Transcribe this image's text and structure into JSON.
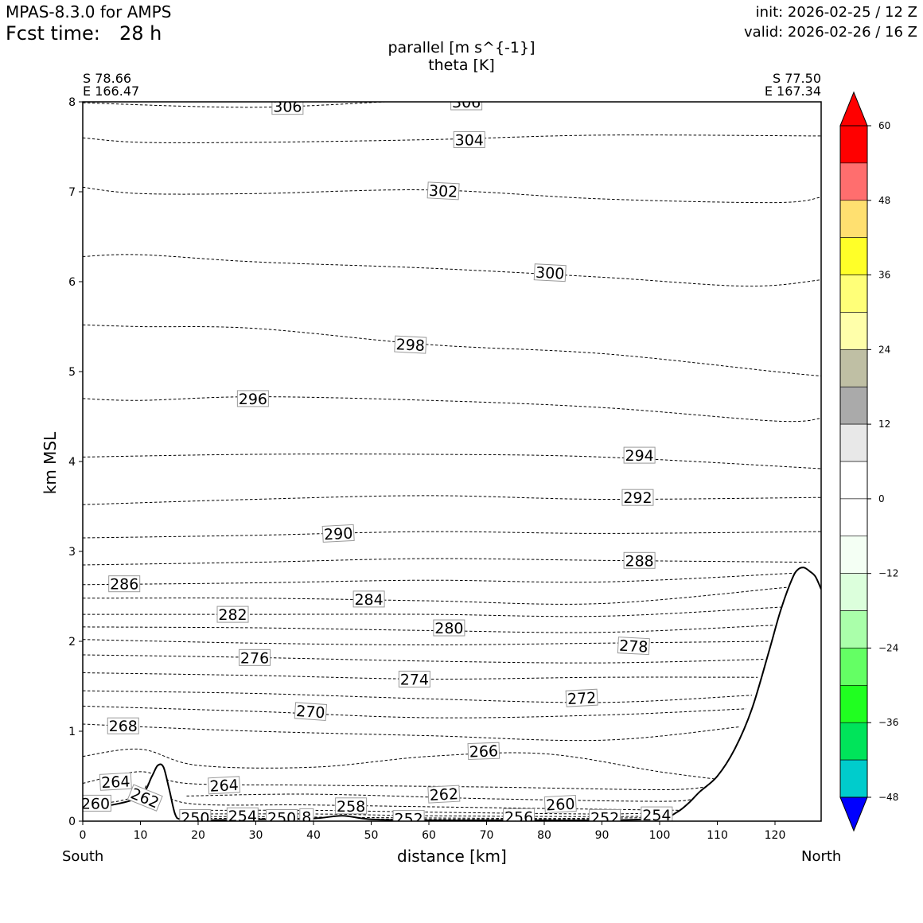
{
  "header": {
    "model": "MPAS-8.3.0 for AMPS",
    "fcst_label": "Fcst time:",
    "fcst_value": "28 h",
    "init": "init: 2026-02-25 / 12 Z",
    "valid": "valid: 2026-02-26 / 16 Z"
  },
  "endpoints": {
    "left_lat": "S 78.66",
    "left_lon": "E 166.47",
    "right_lat": "S 77.50",
    "right_lon": "E 167.34",
    "left_dir": "South",
    "right_dir": "North"
  },
  "chart_data": {
    "type": "line",
    "title": "parallel [m s^{-1}]",
    "subtitle": "theta [K]",
    "xlabel": "distance [km]",
    "ylabel": "km MSL",
    "xlim": [
      0,
      128
    ],
    "ylim": [
      0,
      8
    ],
    "xticks": [
      "0",
      "10",
      "20",
      "30",
      "40",
      "50",
      "60",
      "70",
      "80",
      "90",
      "100",
      "110",
      "120"
    ],
    "yticks": [
      "0",
      "1",
      "2",
      "3",
      "4",
      "5",
      "6",
      "7",
      "8"
    ],
    "grid": false,
    "terrain": {
      "name": "terrain",
      "x": [
        0,
        5,
        10,
        12,
        13,
        14,
        15,
        16,
        17,
        20,
        30,
        40,
        45,
        50,
        60,
        70,
        80,
        90,
        100,
        103,
        105,
        107,
        110,
        113,
        116,
        119,
        121,
        123,
        124,
        125,
        126,
        127,
        128
      ],
      "y": [
        0.16,
        0.18,
        0.28,
        0.5,
        0.62,
        0.6,
        0.35,
        0.08,
        0.02,
        0.01,
        0.02,
        0.03,
        0.06,
        0.02,
        0.01,
        0.01,
        0.01,
        0.01,
        0.03,
        0.1,
        0.2,
        0.33,
        0.5,
        0.8,
        1.25,
        1.9,
        2.35,
        2.7,
        2.8,
        2.82,
        2.78,
        2.72,
        2.58
      ]
    },
    "isentropes": [
      {
        "name": "306",
        "x": [
          0,
          30,
          60,
          90,
          128
        ],
        "y": [
          7.99,
          7.94,
          8.02,
          8.05,
          8.06
        ]
      },
      {
        "name": "304",
        "x": [
          0,
          10,
          30,
          60,
          90,
          128
        ],
        "y": [
          7.6,
          7.55,
          7.55,
          7.58,
          7.63,
          7.62
        ]
      },
      {
        "name": "302",
        "x": [
          0,
          10,
          30,
          60,
          90,
          120,
          128
        ],
        "y": [
          7.05,
          6.98,
          6.98,
          7.02,
          6.92,
          6.88,
          6.94
        ]
      },
      {
        "name": "300",
        "x": [
          0,
          10,
          30,
          60,
          90,
          115,
          128
        ],
        "y": [
          6.28,
          6.3,
          6.22,
          6.15,
          6.05,
          5.95,
          6.02
        ]
      },
      {
        "name": "298",
        "x": [
          0,
          10,
          30,
          60,
          90,
          120,
          128
        ],
        "y": [
          5.52,
          5.5,
          5.48,
          5.3,
          5.2,
          5.0,
          4.95
        ]
      },
      {
        "name": "296",
        "x": [
          0,
          10,
          30,
          60,
          90,
          120,
          128
        ],
        "y": [
          4.7,
          4.68,
          4.72,
          4.68,
          4.6,
          4.45,
          4.48
        ]
      },
      {
        "name": "294",
        "x": [
          0,
          30,
          60,
          90,
          128
        ],
        "y": [
          4.05,
          4.08,
          4.08,
          4.05,
          3.92
        ]
      },
      {
        "name": "292",
        "x": [
          0,
          30,
          60,
          90,
          128
        ],
        "y": [
          3.52,
          3.58,
          3.62,
          3.58,
          3.6
        ]
      },
      {
        "name": "290",
        "x": [
          0,
          30,
          60,
          90,
          128
        ],
        "y": [
          3.15,
          3.18,
          3.22,
          3.2,
          3.22
        ]
      },
      {
        "name": "288",
        "x": [
          0,
          30,
          60,
          90,
          126
        ],
        "y": [
          2.85,
          2.88,
          2.92,
          2.9,
          2.88
        ]
      },
      {
        "name": "286",
        "x": [
          0,
          30,
          60,
          90,
          124
        ],
        "y": [
          2.63,
          2.65,
          2.68,
          2.66,
          2.76
        ]
      },
      {
        "name": "284",
        "x": [
          0,
          30,
          60,
          90,
          122
        ],
        "y": [
          2.48,
          2.48,
          2.45,
          2.42,
          2.6
        ]
      },
      {
        "name": "282",
        "x": [
          0,
          30,
          60,
          90,
          121
        ],
        "y": [
          2.3,
          2.3,
          2.3,
          2.28,
          2.38
        ]
      },
      {
        "name": "280",
        "x": [
          0,
          30,
          60,
          90,
          120
        ],
        "y": [
          2.16,
          2.15,
          2.12,
          2.1,
          2.18
        ]
      },
      {
        "name": "278",
        "x": [
          0,
          30,
          60,
          90,
          119
        ],
        "y": [
          2.02,
          1.98,
          1.96,
          1.98,
          2.0
        ]
      },
      {
        "name": "276",
        "x": [
          0,
          30,
          60,
          90,
          118
        ],
        "y": [
          1.85,
          1.82,
          1.78,
          1.76,
          1.8
        ]
      },
      {
        "name": "274",
        "x": [
          0,
          30,
          60,
          90,
          117
        ],
        "y": [
          1.65,
          1.62,
          1.58,
          1.6,
          1.6
        ]
      },
      {
        "name": "272",
        "x": [
          0,
          30,
          60,
          90,
          116
        ],
        "y": [
          1.45,
          1.42,
          1.36,
          1.32,
          1.4
        ]
      },
      {
        "name": "270",
        "x": [
          0,
          30,
          60,
          90,
          115
        ],
        "y": [
          1.28,
          1.22,
          1.15,
          1.18,
          1.25
        ]
      },
      {
        "name": "268",
        "x": [
          0,
          10,
          30,
          60,
          90,
          114
        ],
        "y": [
          1.08,
          1.05,
          1.0,
          0.95,
          0.9,
          1.05
        ]
      },
      {
        "name": "266",
        "x": [
          0,
          10,
          20,
          40,
          60,
          80,
          100,
          112
        ],
        "y": [
          0.72,
          0.8,
          0.62,
          0.6,
          0.72,
          0.75,
          0.55,
          0.45
        ]
      },
      {
        "name": "264",
        "x": [
          0,
          10,
          18,
          40,
          70,
          100,
          108
        ],
        "y": [
          0.42,
          0.55,
          0.42,
          0.4,
          0.38,
          0.35,
          0.38
        ]
      },
      {
        "name": "262",
        "x": [
          18,
          40,
          70,
          100,
          106
        ],
        "y": [
          0.28,
          0.3,
          0.25,
          0.22,
          0.25
        ]
      },
      {
        "name": "260",
        "x": [
          0,
          6,
          10,
          12,
          18,
          40,
          70,
          104
        ],
        "y": [
          0.18,
          0.22,
          0.3,
          0.42,
          0.2,
          0.18,
          0.15,
          0.12
        ]
      },
      {
        "name": "258",
        "x": [
          18,
          40,
          60,
          90,
          102
        ],
        "y": [
          0.12,
          0.12,
          0.1,
          0.08,
          0.1
        ]
      },
      {
        "name": "256",
        "x": [
          18,
          40,
          60,
          90,
          101
        ],
        "y": [
          0.08,
          0.08,
          0.06,
          0.05,
          0.06
        ]
      },
      {
        "name": "254",
        "x": [
          17,
          30,
          50,
          80,
          100
        ],
        "y": [
          0.05,
          0.05,
          0.04,
          0.03,
          0.04
        ]
      },
      {
        "name": "252",
        "x": [
          17,
          40,
          60,
          90
        ],
        "y": [
          0.03,
          0.03,
          0.02,
          0.02
        ]
      },
      {
        "name": "250",
        "x": [
          17,
          30,
          40
        ],
        "y": [
          0.015,
          0.02,
          0.025
        ]
      }
    ],
    "contour_labels": [
      {
        "text": "306",
        "x": 35.5,
        "y": 7.95,
        "rot": 0
      },
      {
        "text": "306",
        "x": 66.5,
        "y": 8.0,
        "rot": 0
      },
      {
        "text": "304",
        "x": 67,
        "y": 7.58,
        "rot": 0
      },
      {
        "text": "302",
        "x": 62.5,
        "y": 7.01,
        "rot": 3
      },
      {
        "text": "300",
        "x": 81,
        "y": 6.1,
        "rot": 3
      },
      {
        "text": "298",
        "x": 56.8,
        "y": 5.3,
        "rot": 3
      },
      {
        "text": "296",
        "x": 29.5,
        "y": 4.7,
        "rot": 0
      },
      {
        "text": "294",
        "x": 96.5,
        "y": 4.07,
        "rot": 0
      },
      {
        "text": "292",
        "x": 96.2,
        "y": 3.6,
        "rot": 0
      },
      {
        "text": "290",
        "x": 44.3,
        "y": 3.2,
        "rot": -3
      },
      {
        "text": "288",
        "x": 96.5,
        "y": 2.9,
        "rot": 0
      },
      {
        "text": "286",
        "x": 7.2,
        "y": 2.64,
        "rot": 0
      },
      {
        "text": "284",
        "x": 49.6,
        "y": 2.47,
        "rot": 0
      },
      {
        "text": "282",
        "x": 26,
        "y": 2.3,
        "rot": 0
      },
      {
        "text": "280",
        "x": 63.5,
        "y": 2.15,
        "rot": 0
      },
      {
        "text": "278",
        "x": 95.5,
        "y": 1.95,
        "rot": 3
      },
      {
        "text": "276",
        "x": 29.8,
        "y": 1.82,
        "rot": 0
      },
      {
        "text": "274",
        "x": 57.5,
        "y": 1.58,
        "rot": 0
      },
      {
        "text": "272",
        "x": 86.5,
        "y": 1.37,
        "rot": -3
      },
      {
        "text": "270",
        "x": 39.5,
        "y": 1.22,
        "rot": 4
      },
      {
        "text": "268",
        "x": 7,
        "y": 1.06,
        "rot": 0
      },
      {
        "text": "266",
        "x": 69.5,
        "y": 0.78,
        "rot": -2
      },
      {
        "text": "264",
        "x": 5.7,
        "y": 0.44,
        "rot": -3
      },
      {
        "text": "264",
        "x": 24.5,
        "y": 0.4,
        "rot": -3
      },
      {
        "text": "262",
        "x": 10.8,
        "y": 0.26,
        "rot": 22
      },
      {
        "text": "262",
        "x": 62.6,
        "y": 0.3,
        "rot": -3
      },
      {
        "text": "260",
        "x": 2.2,
        "y": 0.2,
        "rot": 0
      },
      {
        "text": "260",
        "x": 82.8,
        "y": 0.19,
        "rot": -3
      },
      {
        "text": "258",
        "x": 46.5,
        "y": 0.17,
        "rot": 0
      },
      {
        "text": "256",
        "x": 75.6,
        "y": 0.05,
        "rot": 0
      },
      {
        "text": "254",
        "x": 27.7,
        "y": 0.06,
        "rot": 0
      },
      {
        "text": "254",
        "x": 99.5,
        "y": 0.07,
        "rot": 0
      },
      {
        "text": "252",
        "x": 56.5,
        "y": 0.03,
        "rot": 0
      },
      {
        "text": "252",
        "x": 90.5,
        "y": 0.04,
        "rot": 0
      },
      {
        "text": "250",
        "x": 19.5,
        "y": 0.04,
        "rot": 0
      },
      {
        "text": "250",
        "x": 34.5,
        "y": 0.04,
        "rot": 0
      },
      {
        "text": "8",
        "x": 38.8,
        "y": 0.05,
        "rot": 0
      }
    ],
    "colorbar": {
      "ticks": [
        "60",
        "48",
        "36",
        "24",
        "12",
        "0",
        "−12",
        "−24",
        "−36",
        "−48"
      ],
      "over_color": "#ff0000",
      "under_color": "#0000ff",
      "bins_top_down": [
        "#ff0000",
        "#ff6e6e",
        "#ffe070",
        "#ffff28",
        "#ffff78",
        "#ffffaa",
        "#bfbfa4",
        "#aaaaaa",
        "#e8e8e8",
        "#ffffff",
        "#ffffff",
        "#f4fff4",
        "#dcffdc",
        "#aaffaa",
        "#64ff64",
        "#20ff20",
        "#00e45a",
        "#00cccc"
      ]
    }
  }
}
